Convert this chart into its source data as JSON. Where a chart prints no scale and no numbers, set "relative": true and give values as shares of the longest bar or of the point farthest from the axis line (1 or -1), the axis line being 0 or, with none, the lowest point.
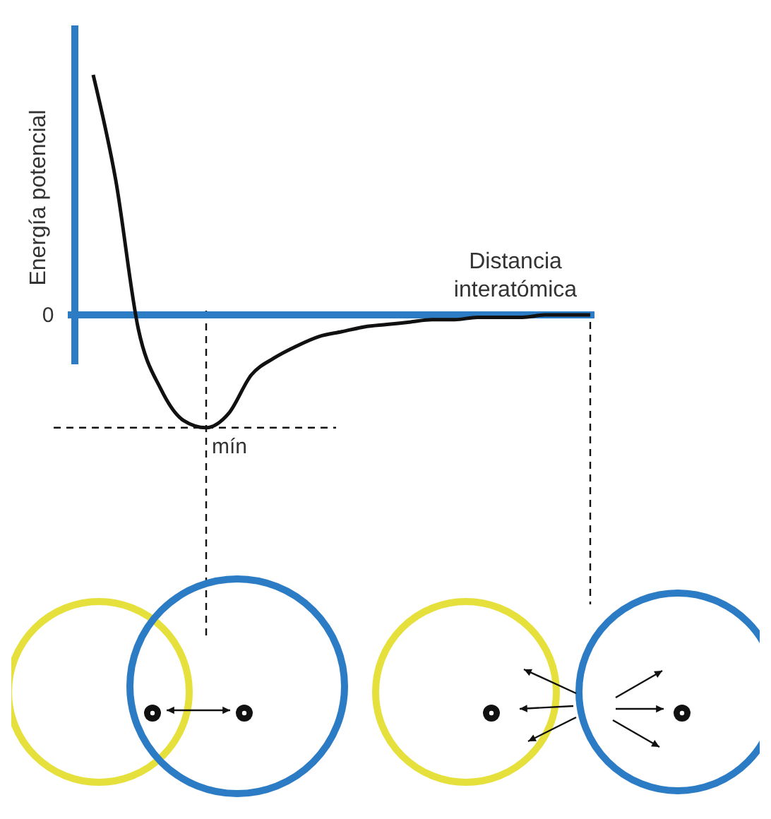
{
  "chart_data": {
    "type": "line",
    "relative": true,
    "xlabel": "Distancia\ninteratómica",
    "ylabel": "Energía potencial",
    "categories": [
      null,
      null,
      null,
      null,
      null,
      null,
      null,
      null,
      null,
      null,
      null,
      null,
      null,
      null,
      null,
      null,
      null,
      null,
      null,
      null,
      null,
      null,
      null
    ],
    "series": [
      {
        "color": "#111111",
        "values": [
          1,
          0.56,
          -0.06,
          -0.31,
          -0.44,
          -0.47,
          -0.41,
          -0.25,
          -0.18,
          -0.13,
          -0.09,
          -0.07,
          -0.05,
          -0.04,
          -0.03,
          -0.02,
          -0.02,
          -0.01,
          -0.01,
          -0.01,
          0,
          0,
          0
        ]
      }
    ],
    "annotations": [
      "0",
      "mín"
    ],
    "ref_lines": [
      {
        "axis": "y",
        "value": -0.47,
        "line_style": "dashed",
        "color": "#111111"
      },
      {
        "axis": "y",
        "value": 0,
        "line_style": "solid",
        "color": "#2b7cc4"
      }
    ],
    "marker": "none",
    "line_style": "solid"
  }
}
